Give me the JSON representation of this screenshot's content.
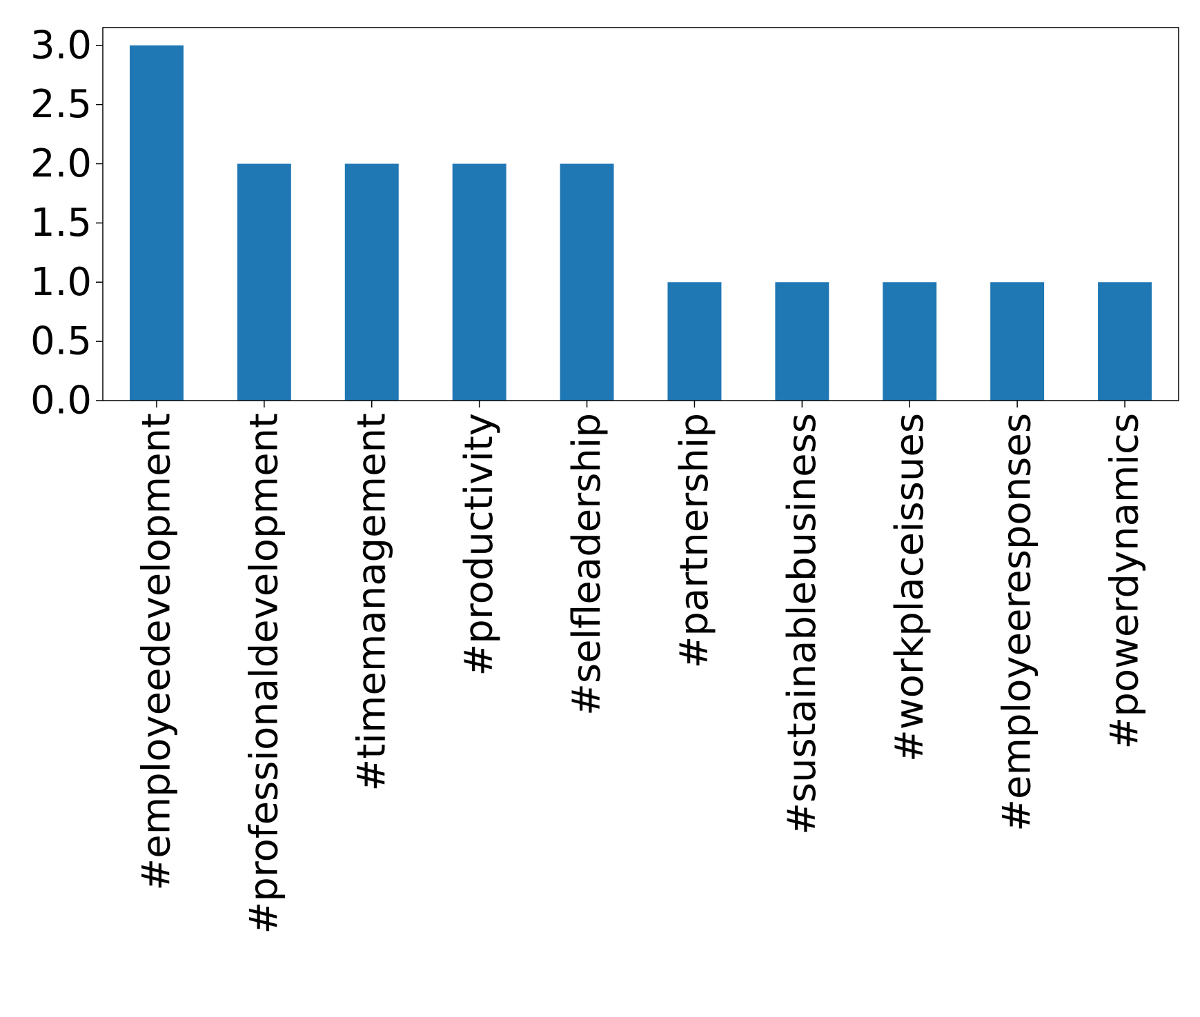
{
  "chart_data": {
    "type": "bar",
    "categories": [
      "#employeedevelopment",
      "#professionaldevelopment",
      "#timemanagement",
      "#productivity",
      "#selfleadership",
      "#partnership",
      "#sustainablebusiness",
      "#workplaceissues",
      "#employeeresponses",
      "#powerdynamics"
    ],
    "values": [
      3,
      2,
      2,
      2,
      2,
      1,
      1,
      1,
      1,
      1
    ],
    "color": "#1f77b4",
    "ylim": [
      0,
      3.15
    ],
    "yticks": [
      {
        "value": 0,
        "label": "0.0"
      },
      0.5,
      {
        "value": 1,
        "label": "1.0"
      },
      1.5,
      {
        "value": 2,
        "label": "2.0"
      },
      2.5,
      {
        "value": 3,
        "label": "3.0"
      }
    ],
    "grid": false
  }
}
